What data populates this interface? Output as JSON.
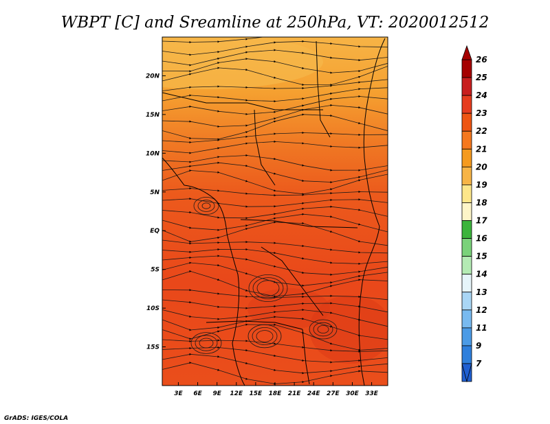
{
  "chart_data": {
    "type": "heatmap",
    "title": "WBPT [C] and Sreamline at 250hPa, VT: 2020012512",
    "variable": "Wet-bulb potential temperature",
    "units": "C",
    "level": "250hPa",
    "valid_time": "2020012512",
    "overlay": "streamlines",
    "x_ticks": [
      "3E",
      "6E",
      "9E",
      "12E",
      "15E",
      "18E",
      "21E",
      "24E",
      "27E",
      "30E",
      "33E"
    ],
    "x_tick_values": [
      3,
      6,
      9,
      12,
      15,
      18,
      21,
      24,
      27,
      30,
      33
    ],
    "y_ticks": [
      "20N",
      "15N",
      "10N",
      "5N",
      "EQ",
      "5S",
      "10S",
      "15S"
    ],
    "y_tick_values": [
      20,
      15,
      10,
      5,
      0,
      -5,
      -10,
      -15
    ],
    "xlim": [
      0.5,
      35.5
    ],
    "ylim": [
      -20,
      25
    ],
    "colorbar": {
      "labels": [
        "26",
        "25",
        "24",
        "23",
        "22",
        "21",
        "20",
        "19",
        "18",
        "17",
        "16",
        "15",
        "14",
        "13",
        "12",
        "11",
        "9",
        "7"
      ],
      "colors": [
        "#a50000",
        "#c81e1e",
        "#e63c1e",
        "#ee5512",
        "#f5781e",
        "#f59a1e",
        "#f7b446",
        "#fde68a",
        "#fdf5c8",
        "#3cb43c",
        "#7ad27a",
        "#b4ebb4",
        "#e6f5fa",
        "#a9d6f5",
        "#78baf0",
        "#4b9be6",
        "#2e7fdc",
        "#1e5fd2"
      ]
    },
    "field_bands": [
      {
        "region": "north (15N-25N)",
        "value_range": [
          20,
          21
        ],
        "color": "#f59a2a"
      },
      {
        "region": "central (5N-15N)",
        "value_range": [
          21,
          22
        ],
        "color": "#f07826"
      },
      {
        "region": "south (20S-5N)",
        "value_range": [
          22,
          24
        ],
        "color": "#e94e1b"
      }
    ]
  },
  "credit": "GrADS: IGES/COLA"
}
